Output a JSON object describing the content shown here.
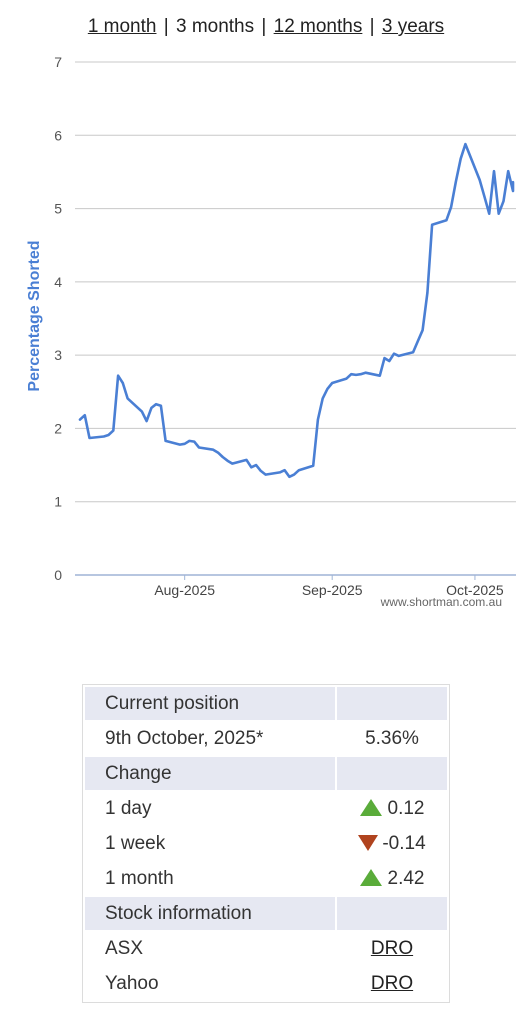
{
  "nav": {
    "one_month": "1 month",
    "three_months": "3 months",
    "twelve_months": "12 months",
    "three_years": "3 years",
    "separator": "|"
  },
  "chart_data": {
    "type": "line",
    "ylabel": "Percentage Shorted",
    "ylim": [
      0,
      7
    ],
    "yticks": [
      "0",
      "1",
      "2",
      "3",
      "4",
      "5",
      "6",
      "7"
    ],
    "xlim": [
      "2025-07-10",
      "2025-10-09"
    ],
    "xticks": [
      {
        "date": "2025-08-01",
        "label": "Aug-2025"
      },
      {
        "date": "2025-09-01",
        "label": "Sep-2025"
      },
      {
        "date": "2025-10-01",
        "label": "Oct-2025"
      }
    ],
    "grid": true,
    "color": "#4a7fd4",
    "credit": "www.shortman.com.au",
    "series": [
      {
        "points": [
          [
            "2025-07-10",
            2.12
          ],
          [
            "2025-07-11",
            2.18
          ],
          [
            "2025-07-12",
            1.87
          ],
          [
            "2025-07-15",
            1.89
          ],
          [
            "2025-07-16",
            1.91
          ],
          [
            "2025-07-17",
            1.97
          ],
          [
            "2025-07-18",
            2.72
          ],
          [
            "2025-07-19",
            2.62
          ],
          [
            "2025-07-20",
            2.41
          ],
          [
            "2025-07-23",
            2.23
          ],
          [
            "2025-07-24",
            2.1
          ],
          [
            "2025-07-25",
            2.28
          ],
          [
            "2025-07-26",
            2.33
          ],
          [
            "2025-07-27",
            2.31
          ],
          [
            "2025-07-28",
            1.83
          ],
          [
            "2025-07-31",
            1.78
          ],
          [
            "2025-08-01",
            1.79
          ],
          [
            "2025-08-02",
            1.83
          ],
          [
            "2025-08-03",
            1.82
          ],
          [
            "2025-08-04",
            1.74
          ],
          [
            "2025-08-07",
            1.71
          ],
          [
            "2025-08-08",
            1.67
          ],
          [
            "2025-08-09",
            1.61
          ],
          [
            "2025-08-10",
            1.56
          ],
          [
            "2025-08-11",
            1.52
          ],
          [
            "2025-08-14",
            1.57
          ],
          [
            "2025-08-15",
            1.47
          ],
          [
            "2025-08-16",
            1.5
          ],
          [
            "2025-08-17",
            1.42
          ],
          [
            "2025-08-18",
            1.37
          ],
          [
            "2025-08-21",
            1.4
          ],
          [
            "2025-08-22",
            1.43
          ],
          [
            "2025-08-23",
            1.34
          ],
          [
            "2025-08-24",
            1.37
          ],
          [
            "2025-08-25",
            1.43
          ],
          [
            "2025-08-28",
            1.49
          ],
          [
            "2025-08-29",
            2.12
          ],
          [
            "2025-08-30",
            2.41
          ],
          [
            "2025-08-31",
            2.54
          ],
          [
            "2025-09-01",
            2.62
          ],
          [
            "2025-09-04",
            2.68
          ],
          [
            "2025-09-05",
            2.74
          ],
          [
            "2025-09-06",
            2.73
          ],
          [
            "2025-09-07",
            2.74
          ],
          [
            "2025-09-08",
            2.76
          ],
          [
            "2025-09-11",
            2.72
          ],
          [
            "2025-09-12",
            2.96
          ],
          [
            "2025-09-13",
            2.92
          ],
          [
            "2025-09-14",
            3.02
          ],
          [
            "2025-09-15",
            2.99
          ],
          [
            "2025-09-18",
            3.04
          ],
          [
            "2025-09-19",
            3.19
          ],
          [
            "2025-09-20",
            3.34
          ],
          [
            "2025-09-21",
            3.85
          ],
          [
            "2025-09-22",
            4.78
          ],
          [
            "2025-09-25",
            4.84
          ],
          [
            "2025-09-26",
            5.02
          ],
          [
            "2025-09-27",
            5.37
          ],
          [
            "2025-09-28",
            5.68
          ],
          [
            "2025-09-29",
            5.88
          ],
          [
            "2025-10-02",
            5.39
          ],
          [
            "2025-10-03",
            5.16
          ],
          [
            "2025-10-04",
            4.93
          ],
          [
            "2025-10-05",
            5.51
          ],
          [
            "2025-10-06",
            4.93
          ],
          [
            "2025-10-07",
            5.1
          ],
          [
            "2025-10-08",
            5.51
          ],
          [
            "2025-10-09",
            5.24
          ],
          [
            "2025-10-09",
            5.36
          ]
        ]
      }
    ]
  },
  "summary": {
    "current_position_heading": "Current position",
    "date_label": "9th October, 2025*",
    "current_value": "5.36%",
    "change_heading": "Change",
    "changes": [
      {
        "label": "1 day",
        "direction": "up",
        "value": "0.12"
      },
      {
        "label": "1 week",
        "direction": "down",
        "value": "-0.14"
      },
      {
        "label": "1 month",
        "direction": "up",
        "value": "2.42"
      }
    ],
    "stock_info_heading": "Stock information",
    "asx_label": "ASX",
    "asx_link": "DRO",
    "yahoo_label": "Yahoo",
    "yahoo_link": "DRO",
    "up_color": "#5aac3a",
    "down_color": "#b0431e"
  }
}
